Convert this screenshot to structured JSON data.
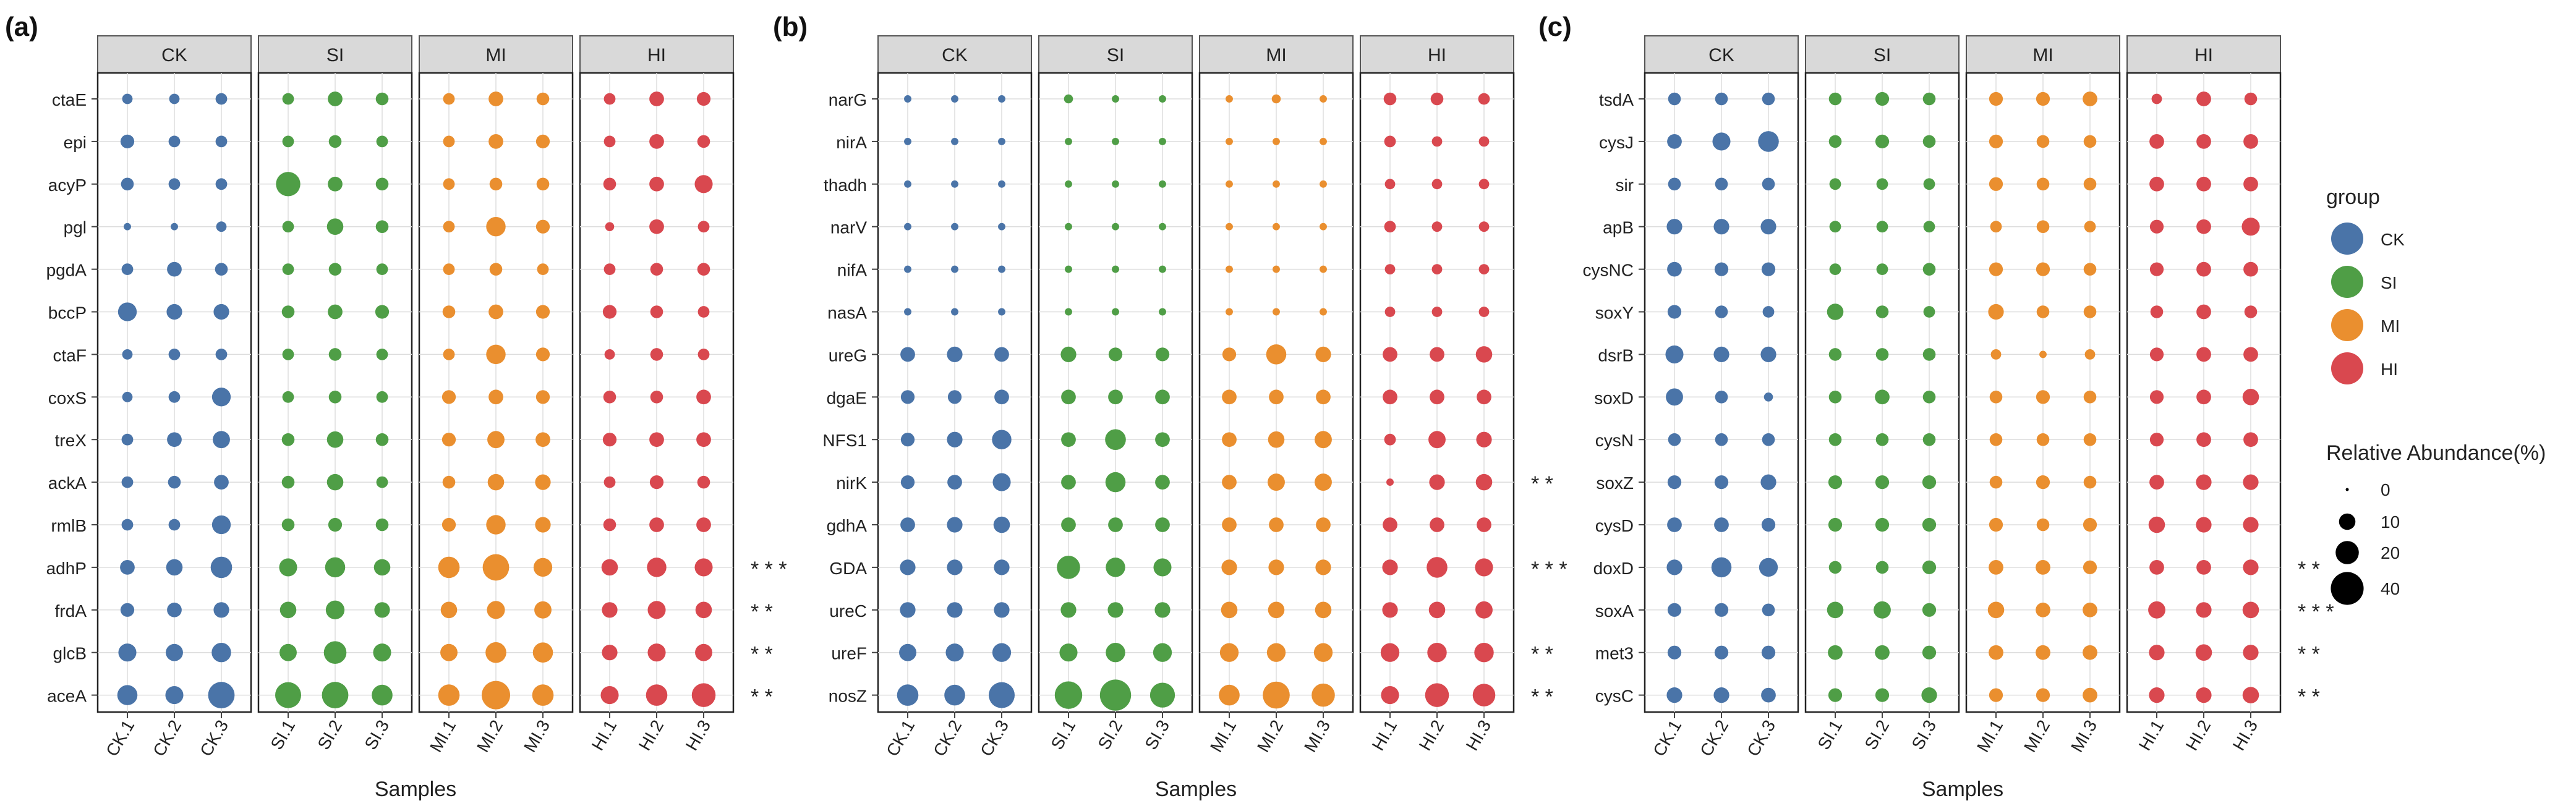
{
  "figure": {
    "panel_labels": [
      "(a)",
      "(b)",
      "(c)"
    ],
    "x_axis_title": "Samples",
    "group_order": [
      "CK",
      "SI",
      "MI",
      "HI"
    ],
    "sample_labels": [
      [
        "CK.1",
        "CK.2",
        "CK.3"
      ],
      [
        "SI.1",
        "SI.2",
        "SI.3"
      ],
      [
        "MI.1",
        "MI.2",
        "MI.3"
      ],
      [
        "HI.1",
        "HI.2",
        "HI.3"
      ]
    ],
    "colors": {
      "CK": "#4a74a8",
      "SI": "#4f9e46",
      "MI": "#ea8f2f",
      "HI": "#d9484f",
      "strip_fill": "#d9d9d9",
      "grid": "#dddddd"
    }
  },
  "legend": {
    "group_title": "group",
    "groups": [
      "CK",
      "SI",
      "MI",
      "HI"
    ],
    "size_title": "Relative Abundance(%)",
    "size_values": [
      "0",
      "10",
      "20",
      "40"
    ]
  },
  "chart_data": [
    {
      "type": "scatter",
      "panel": "(a)",
      "xlabel": "Samples",
      "ylabel": "",
      "genes": [
        "ctaE",
        "epi",
        "acyP",
        "pgl",
        "pgdA",
        "bccP",
        "ctaF",
        "coxS",
        "treX",
        "ackA",
        "rmlB",
        "adhP",
        "frdA",
        "glcB",
        "aceA"
      ],
      "significance": [
        "",
        "",
        "",
        "",
        "",
        "",
        "",
        "",
        "",
        "",
        "",
        "* * *",
        "* *",
        "* *",
        "* *"
      ],
      "size_unit": "Relative Abundance(%)",
      "abundance": {
        "CK": [
          [
            4,
            4,
            5
          ],
          [
            7,
            5,
            5
          ],
          [
            6,
            5,
            5
          ],
          [
            2,
            2,
            4
          ],
          [
            5,
            8,
            6
          ],
          [
            13,
            9,
            9
          ],
          [
            4,
            5,
            5
          ],
          [
            4,
            5,
            13
          ],
          [
            5,
            8,
            11
          ],
          [
            5,
            6,
            8
          ],
          [
            5,
            5,
            13
          ],
          [
            8,
            10,
            17
          ],
          [
            7,
            8,
            9
          ],
          [
            12,
            11,
            14
          ],
          [
            15,
            12,
            26
          ]
        ],
        "SI": [
          [
            5,
            8,
            6
          ],
          [
            5,
            6,
            5
          ],
          [
            22,
            8,
            6
          ],
          [
            5,
            10,
            6
          ],
          [
            5,
            6,
            5
          ],
          [
            6,
            8,
            7
          ],
          [
            5,
            6,
            5
          ],
          [
            5,
            6,
            5
          ],
          [
            6,
            10,
            6
          ],
          [
            6,
            10,
            5
          ],
          [
            6,
            7,
            6
          ],
          [
            12,
            15,
            10
          ],
          [
            10,
            13,
            9
          ],
          [
            11,
            19,
            12
          ],
          [
            25,
            26,
            16
          ]
        ],
        "MI": [
          [
            5,
            8,
            6
          ],
          [
            5,
            8,
            7
          ],
          [
            5,
            6,
            6
          ],
          [
            5,
            14,
            7
          ],
          [
            5,
            6,
            5
          ],
          [
            6,
            8,
            7
          ],
          [
            5,
            14,
            7
          ],
          [
            7,
            8,
            7
          ],
          [
            7,
            11,
            8
          ],
          [
            6,
            10,
            9
          ],
          [
            7,
            14,
            9
          ],
          [
            17,
            26,
            13
          ],
          [
            10,
            12,
            11
          ],
          [
            11,
            16,
            15
          ],
          [
            17,
            30,
            17
          ]
        ],
        "HI": [
          [
            5,
            8,
            7
          ],
          [
            5,
            8,
            6
          ],
          [
            6,
            8,
            12
          ],
          [
            3,
            8,
            5
          ],
          [
            5,
            6,
            6
          ],
          [
            7,
            6,
            5
          ],
          [
            4,
            6,
            5
          ],
          [
            6,
            6,
            8
          ],
          [
            7,
            8,
            8
          ],
          [
            5,
            7,
            6
          ],
          [
            6,
            8,
            8
          ],
          [
            10,
            14,
            12
          ],
          [
            9,
            12,
            10
          ],
          [
            9,
            12,
            11
          ],
          [
            12,
            17,
            21
          ]
        ]
      }
    },
    {
      "type": "scatter",
      "panel": "(b)",
      "xlabel": "Samples",
      "ylabel": "",
      "genes": [
        "narG",
        "nirA",
        "thadh",
        "narV",
        "nifA",
        "nasA",
        "ureG",
        "dgaE",
        "NFS1",
        "nirK",
        "gdhA",
        "GDA",
        "ureC",
        "ureF",
        "nosZ"
      ],
      "significance": [
        "",
        "",
        "",
        "",
        "",
        "",
        "",
        "",
        "",
        "* *",
        "",
        "* * *",
        "",
        "* *",
        "* *"
      ],
      "size_unit": "Relative Abundance(%)",
      "abundance": {
        "CK": [
          [
            2,
            2,
            2
          ],
          [
            2,
            2,
            2
          ],
          [
            2,
            2,
            2
          ],
          [
            2,
            2,
            2
          ],
          [
            2,
            2,
            2
          ],
          [
            2,
            2,
            2
          ],
          [
            8,
            9,
            8
          ],
          [
            7,
            7,
            8
          ],
          [
            7,
            9,
            14
          ],
          [
            7,
            8,
            12
          ],
          [
            8,
            9,
            10
          ],
          [
            9,
            9,
            9
          ],
          [
            9,
            9,
            9
          ],
          [
            11,
            12,
            13
          ],
          [
            17,
            16,
            25
          ]
        ],
        "SI": [
          [
            3,
            2,
            2
          ],
          [
            2,
            2,
            2
          ],
          [
            2,
            2,
            2
          ],
          [
            2,
            2,
            2
          ],
          [
            2,
            2,
            2
          ],
          [
            2,
            2,
            2
          ],
          [
            9,
            7,
            7
          ],
          [
            8,
            8,
            8
          ],
          [
            8,
            16,
            8
          ],
          [
            8,
            15,
            8
          ],
          [
            8,
            8,
            8
          ],
          [
            20,
            14,
            12
          ],
          [
            9,
            9,
            9
          ],
          [
            12,
            14,
            13
          ],
          [
            28,
            36,
            23
          ]
        ],
        "MI": [
          [
            2,
            3,
            2
          ],
          [
            2,
            2,
            2
          ],
          [
            2,
            2,
            2
          ],
          [
            2,
            2,
            2
          ],
          [
            2,
            2,
            2
          ],
          [
            2,
            2,
            2
          ],
          [
            7,
            15,
            9
          ],
          [
            8,
            8,
            8
          ],
          [
            8,
            10,
            11
          ],
          [
            8,
            11,
            11
          ],
          [
            8,
            8,
            8
          ],
          [
            9,
            9,
            9
          ],
          [
            10,
            10,
            10
          ],
          [
            13,
            13,
            13
          ],
          [
            16,
            27,
            20
          ]
        ],
        "HI": [
          [
            6,
            6,
            5
          ],
          [
            5,
            4,
            4
          ],
          [
            4,
            4,
            4
          ],
          [
            5,
            4,
            4
          ],
          [
            4,
            4,
            4
          ],
          [
            4,
            4,
            4
          ],
          [
            8,
            8,
            10
          ],
          [
            8,
            8,
            8
          ],
          [
            5,
            11,
            9
          ],
          [
            2,
            9,
            10
          ],
          [
            8,
            8,
            8
          ],
          [
            9,
            16,
            12
          ],
          [
            9,
            10,
            11
          ],
          [
            13,
            14,
            14
          ],
          [
            12,
            21,
            19
          ]
        ]
      }
    },
    {
      "type": "scatter",
      "panel": "(c)",
      "xlabel": "Samples",
      "ylabel": "",
      "genes": [
        "tsdA",
        "cysJ",
        "sir",
        "apB",
        "cysNC",
        "soxY",
        "dsrB",
        "soxD",
        "cysN",
        "soxZ",
        "cysD",
        "doxD",
        "soxA",
        "met3",
        "cysC"
      ],
      "significance": [
        "",
        "",
        "",
        "",
        "",
        "",
        "",
        "",
        "",
        "",
        "",
        "* *",
        "* * *",
        "* *",
        "* *"
      ],
      "size_unit": "Relative Abundance(%)",
      "abundance": {
        "CK": [
          [
            6,
            6,
            6
          ],
          [
            8,
            12,
            16
          ],
          [
            6,
            6,
            6
          ],
          [
            9,
            9,
            9
          ],
          [
            8,
            7,
            7
          ],
          [
            7,
            6,
            5
          ],
          [
            12,
            9,
            9
          ],
          [
            11,
            6,
            3
          ],
          [
            6,
            6,
            6
          ],
          [
            7,
            7,
            9
          ],
          [
            8,
            8,
            7
          ],
          [
            9,
            15,
            13
          ],
          [
            7,
            7,
            6
          ],
          [
            7,
            7,
            7
          ],
          [
            9,
            9,
            8
          ]
        ],
        "SI": [
          [
            6,
            7,
            6
          ],
          [
            6,
            7,
            6
          ],
          [
            5,
            5,
            5
          ],
          [
            5,
            5,
            5
          ],
          [
            5,
            5,
            6
          ],
          [
            10,
            6,
            5
          ],
          [
            6,
            6,
            6
          ],
          [
            6,
            8,
            6
          ],
          [
            6,
            6,
            6
          ],
          [
            7,
            7,
            7
          ],
          [
            7,
            7,
            7
          ],
          [
            6,
            6,
            7
          ],
          [
            10,
            11,
            7
          ],
          [
            8,
            8,
            7
          ],
          [
            7,
            7,
            9
          ]
        ],
        "MI": [
          [
            7,
            7,
            8
          ],
          [
            7,
            6,
            6
          ],
          [
            7,
            6,
            6
          ],
          [
            5,
            6,
            5
          ],
          [
            7,
            7,
            6
          ],
          [
            9,
            6,
            6
          ],
          [
            4,
            2,
            4
          ],
          [
            6,
            7,
            6
          ],
          [
            6,
            6,
            6
          ],
          [
            6,
            7,
            6
          ],
          [
            7,
            6,
            7
          ],
          [
            8,
            8,
            7
          ],
          [
            10,
            8,
            8
          ],
          [
            8,
            8,
            8
          ],
          [
            7,
            7,
            8
          ]
        ],
        "HI": [
          [
            4,
            8,
            6
          ],
          [
            8,
            8,
            8
          ],
          [
            8,
            8,
            8
          ],
          [
            7,
            8,
            12
          ],
          [
            7,
            8,
            8
          ],
          [
            6,
            8,
            6
          ],
          [
            7,
            8,
            8
          ],
          [
            7,
            8,
            10
          ],
          [
            7,
            8,
            8
          ],
          [
            8,
            9,
            9
          ],
          [
            10,
            9,
            9
          ],
          [
            8,
            8,
            9
          ],
          [
            11,
            9,
            10
          ],
          [
            9,
            10,
            9
          ],
          [
            9,
            9,
            10
          ]
        ]
      }
    }
  ]
}
